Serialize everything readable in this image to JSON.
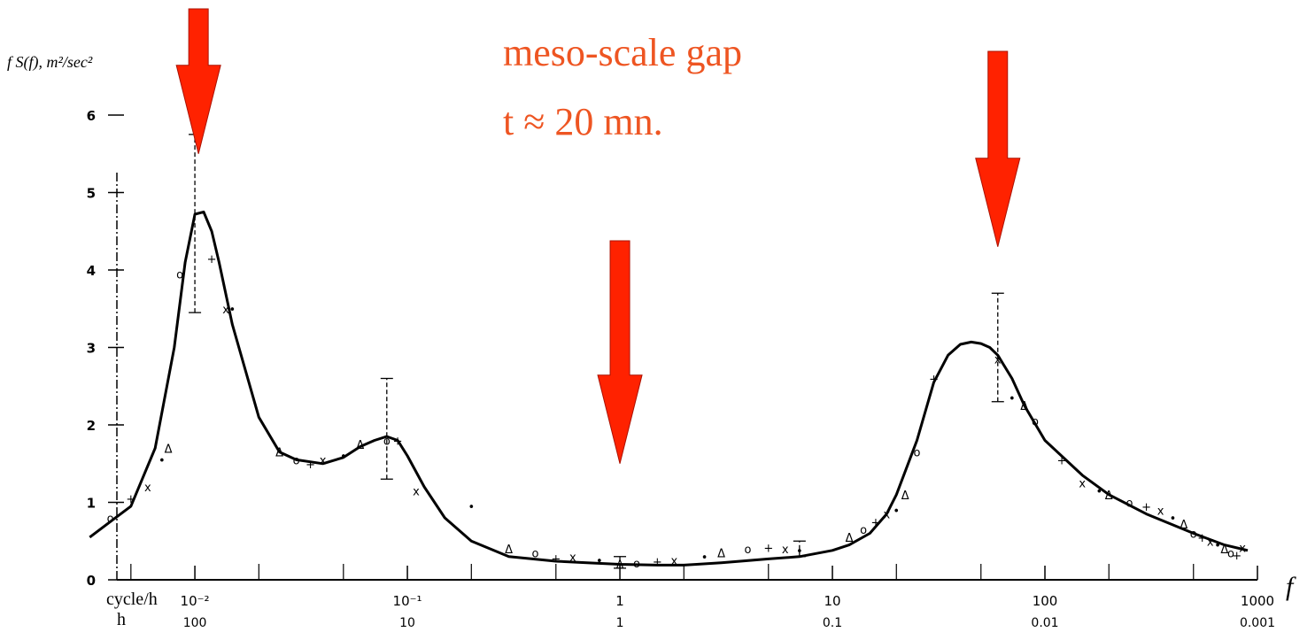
{
  "chart_data": {
    "type": "line",
    "title": "",
    "ylabel": "f S(f), m²/sec²",
    "xlabel": "f",
    "x_scale": "log",
    "xlim": [
      0.00316,
      1000
    ],
    "ylim": [
      0,
      6
    ],
    "y_ticks": [
      "0",
      "1",
      "2",
      "3",
      "4",
      "5",
      "6"
    ],
    "x_ticks": [
      {
        "value": 0.01,
        "label": "10⁻²",
        "period": "100"
      },
      {
        "value": 0.1,
        "label": "10⁻¹",
        "period": "10"
      },
      {
        "value": 1,
        "label": "1",
        "period": "1"
      },
      {
        "value": 10,
        "label": "10",
        "period": "0.1"
      },
      {
        "value": 100,
        "label": "100",
        "period": "0.01"
      },
      {
        "value": 1000,
        "label": "1000",
        "period": "0.001"
      }
    ],
    "x_unit_label": "cycle/h",
    "period_unit_label": "h",
    "series": [
      {
        "x": [
          0.0032,
          0.005,
          0.0065,
          0.008,
          0.009,
          0.01,
          0.011,
          0.012,
          0.013,
          0.015,
          0.02,
          0.025,
          0.03,
          0.04,
          0.05,
          0.06,
          0.07,
          0.08,
          0.09,
          0.1,
          0.12,
          0.15,
          0.2,
          0.3,
          0.5,
          0.7,
          1,
          1.5,
          2,
          3,
          5,
          7,
          10,
          12,
          15,
          18,
          20,
          25,
          30,
          35,
          40,
          45,
          50,
          55,
          60,
          70,
          80,
          100,
          150,
          200,
          300,
          500,
          700,
          900
        ],
        "y": [
          0.55,
          0.95,
          1.7,
          3.0,
          4.1,
          4.72,
          4.75,
          4.5,
          4.1,
          3.3,
          2.1,
          1.65,
          1.55,
          1.5,
          1.58,
          1.72,
          1.8,
          1.85,
          1.8,
          1.6,
          1.2,
          0.8,
          0.5,
          0.3,
          0.24,
          0.22,
          0.2,
          0.19,
          0.19,
          0.22,
          0.27,
          0.3,
          0.38,
          0.45,
          0.6,
          0.85,
          1.1,
          1.8,
          2.55,
          2.9,
          3.04,
          3.07,
          3.05,
          3.0,
          2.9,
          2.6,
          2.25,
          1.8,
          1.35,
          1.1,
          0.85,
          0.6,
          0.45,
          0.38
        ]
      }
    ],
    "points": {
      "x": [
        0.004,
        0.005,
        0.006,
        0.007,
        0.0075,
        0.0085,
        0.012,
        0.014,
        0.015,
        0.025,
        0.03,
        0.035,
        0.04,
        0.05,
        0.06,
        0.08,
        0.09,
        0.11,
        0.2,
        0.3,
        0.4,
        0.5,
        0.6,
        0.8,
        1,
        1.2,
        1.5,
        1.8,
        2.5,
        3,
        4,
        5,
        6,
        7,
        12,
        14,
        16,
        18,
        20,
        22,
        25,
        30,
        60,
        70,
        80,
        90,
        120,
        150,
        180,
        200,
        250,
        300,
        350,
        400,
        450,
        500,
        550,
        600,
        650,
        700,
        750,
        800,
        850
      ],
      "y": [
        0.8,
        1.05,
        1.2,
        1.55,
        1.7,
        3.95,
        4.15,
        3.5,
        3.5,
        1.65,
        1.55,
        1.5,
        1.55,
        1.6,
        1.75,
        1.8,
        1.8,
        1.15,
        0.95,
        0.4,
        0.35,
        0.28,
        0.3,
        0.25,
        0.2,
        0.22,
        0.24,
        0.25,
        0.3,
        0.35,
        0.4,
        0.42,
        0.4,
        0.38,
        0.55,
        0.65,
        0.75,
        0.85,
        0.9,
        1.1,
        1.65,
        2.6,
        2.85,
        2.35,
        2.25,
        2.05,
        1.55,
        1.25,
        1.15,
        1.1,
        1.0,
        0.95,
        0.9,
        0.8,
        0.72,
        0.6,
        0.55,
        0.5,
        0.45,
        0.4,
        0.35,
        0.32,
        0.42
      ]
    },
    "error_bars": [
      {
        "x": 0.01,
        "low": 3.45,
        "high": 5.75
      },
      {
        "x": 0.08,
        "low": 1.3,
        "high": 2.6
      },
      {
        "x": 1.0,
        "low": 0.15,
        "high": 0.3
      },
      {
        "x": 7.0,
        "low": 0.3,
        "high": 0.5
      },
      {
        "x": 60,
        "low": 2.3,
        "high": 3.7
      }
    ],
    "annotations": {
      "line1": "meso-scale gap",
      "line2": "t ≈ 20 mn."
    },
    "arrows": [
      {
        "x": 0.0104,
        "y_tip": 5.5
      },
      {
        "x": 1.0,
        "y_tip": 1.5
      },
      {
        "x": 60,
        "y_tip": 4.3
      }
    ],
    "colors": {
      "curve": "#000000",
      "arrow": "#ff2200",
      "annotation": "#ee5522"
    }
  }
}
